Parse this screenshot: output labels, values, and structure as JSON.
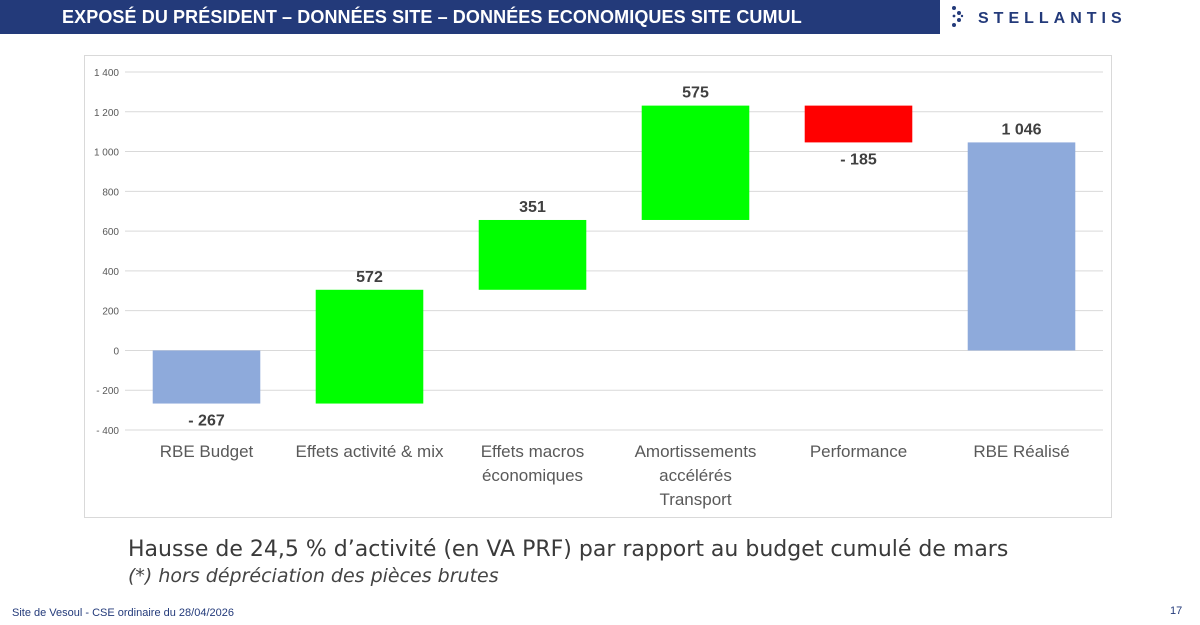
{
  "header": {
    "title": "EXPOSÉ DU PRÉSIDENT – DONNÉES SITE – DONNÉES ECONOMIQUES SITE CUMUL",
    "logo_text": "STELLANTIS",
    "bar_color": "#233a7a"
  },
  "chart_data": {
    "type": "bar",
    "subtype": "waterfall",
    "categories": [
      [
        "RBE Budget"
      ],
      [
        "Effets activité & mix"
      ],
      [
        "Effets macros",
        "économiques"
      ],
      [
        "Amortissements",
        "accélérés",
        "Transport"
      ],
      [
        "Performance"
      ],
      [
        "RBE Réalisé"
      ]
    ],
    "bars": [
      {
        "from": 0,
        "to": -267,
        "label": "- 267",
        "color": "#8eaadb",
        "label_position": "below"
      },
      {
        "from": -267,
        "to": 305,
        "label": "572",
        "color": "#00ff00",
        "label_position": "above"
      },
      {
        "from": 305,
        "to": 656,
        "label": "351",
        "color": "#00ff00",
        "label_position": "above"
      },
      {
        "from": 656,
        "to": 1231,
        "label": "575",
        "color": "#00ff00",
        "label_position": "above"
      },
      {
        "from": 1231,
        "to": 1046,
        "label": "- 185",
        "color": "#ff0000",
        "label_position": "below"
      },
      {
        "from": 0,
        "to": 1046,
        "label": "1 046",
        "color": "#8eaadb",
        "label_position": "above"
      }
    ],
    "ylim": [
      -400,
      1400
    ],
    "yticks": [
      {
        "value": 1400,
        "label": "1 400"
      },
      {
        "value": 1200,
        "label": "1 200"
      },
      {
        "value": 1000,
        "label": "1 000"
      },
      {
        "value": 800,
        "label": "800"
      },
      {
        "value": 600,
        "label": "600"
      },
      {
        "value": 400,
        "label": "400"
      },
      {
        "value": 200,
        "label": "200"
      },
      {
        "value": 0,
        "label": "0"
      },
      {
        "value": -200,
        "label": "- 200"
      },
      {
        "value": -400,
        "label": "- 400"
      }
    ],
    "grid": true,
    "legend": "none"
  },
  "caption": "Hausse de 24,5 % d’activité (en VA PRF) par rapport au budget cumulé de mars",
  "note": "(*) hors dépréciation des pièces brutes",
  "footer": {
    "left": "Site de Vesoul - CSE ordinaire du 28/04/2026",
    "page_number": "17"
  }
}
